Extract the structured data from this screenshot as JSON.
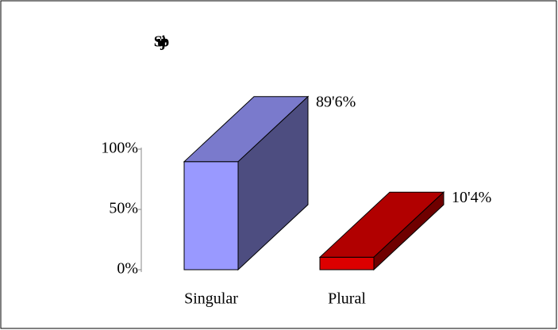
{
  "chart_data": {
    "type": "bar3d",
    "title": "Sujeto",
    "categories": [
      "Singular",
      "Plural"
    ],
    "series": [
      {
        "name": "Sujeto",
        "values": [
          89.6,
          10.4
        ],
        "value_labels": [
          "89'6%",
          "10'4%"
        ],
        "colors": [
          "#9999ff",
          "#dd0000"
        ]
      }
    ],
    "ylim": [
      0,
      100
    ],
    "yticks": [
      {
        "value": 0,
        "label": "0%"
      },
      {
        "value": 50,
        "label": "50%"
      },
      {
        "value": 100,
        "label": "100%"
      }
    ]
  }
}
